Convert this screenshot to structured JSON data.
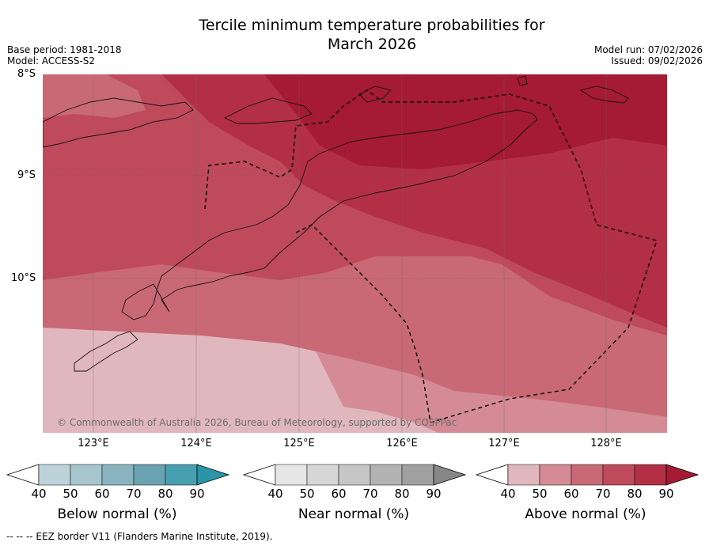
{
  "title_line1": "Tercile minimum temperature probabilities for",
  "title_line2": "March 2026",
  "base_period": "Base period: 1981-2018",
  "model": "Model: ACCESS-S2",
  "model_run": "Model run: 07/02/2026",
  "issued": "Issued: 09/02/2026",
  "map": {
    "lat_labels": [
      "8°S",
      "9°S",
      "10°S"
    ],
    "lon_labels": [
      "123°E",
      "124°E",
      "125°E",
      "126°E",
      "127°E",
      "128°E"
    ],
    "copyright": "© Commonwealth of Australia 2026, Bureau of Meteorology, supported by COSPPac",
    "extent": {
      "lon_min": 122.5,
      "lon_max": 128.6,
      "lat_min": -11.5,
      "lat_max": -8.0
    },
    "dominant_category": "Above normal",
    "probability_bands_percent": [
      50,
      60,
      70,
      80,
      90
    ]
  },
  "colorbars": [
    {
      "label": "Below normal (%)",
      "ticks": [
        "40",
        "50",
        "60",
        "70",
        "80",
        "90"
      ],
      "colors": [
        "#ffffff",
        "#bdd3d9",
        "#a6c5cc",
        "#89b4bf",
        "#6aa4b2",
        "#47a0b0",
        "#2b95a7"
      ]
    },
    {
      "label": "Near normal (%)",
      "ticks": [
        "40",
        "50",
        "60",
        "70",
        "80",
        "90"
      ],
      "colors": [
        "#ffffff",
        "#e6e6e6",
        "#d6d6d6",
        "#c6c6c6",
        "#b3b3b3",
        "#a0a0a0",
        "#878787"
      ]
    },
    {
      "label": "Above normal (%)",
      "ticks": [
        "40",
        "50",
        "60",
        "70",
        "80",
        "90"
      ],
      "colors": [
        "#ffffff",
        "#e0b7bd",
        "#d48b95",
        "#c96975",
        "#bf4a5c",
        "#b32f45",
        "#a51a34"
      ]
    }
  ],
  "footer": "--  --  -- EEZ border V11 (Flanders Marine Institute, 2019)."
}
